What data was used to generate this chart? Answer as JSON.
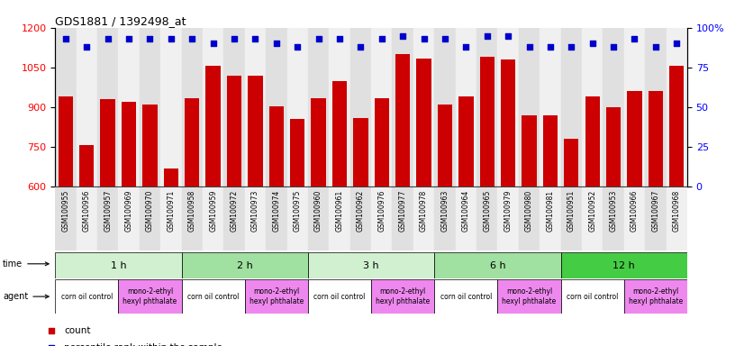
{
  "title": "GDS1881 / 1392498_at",
  "samples": [
    "GSM100955",
    "GSM100956",
    "GSM100957",
    "GSM100969",
    "GSM100970",
    "GSM100971",
    "GSM100958",
    "GSM100959",
    "GSM100972",
    "GSM100973",
    "GSM100974",
    "GSM100975",
    "GSM100960",
    "GSM100961",
    "GSM100962",
    "GSM100976",
    "GSM100977",
    "GSM100978",
    "GSM100963",
    "GSM100964",
    "GSM100965",
    "GSM100979",
    "GSM100980",
    "GSM100981",
    "GSM100951",
    "GSM100952",
    "GSM100953",
    "GSM100966",
    "GSM100967",
    "GSM100968"
  ],
  "counts": [
    940,
    757,
    930,
    920,
    910,
    670,
    935,
    1055,
    1020,
    1020,
    905,
    855,
    935,
    1000,
    860,
    935,
    1100,
    1085,
    910,
    940,
    1090,
    1080,
    870,
    870,
    780,
    940,
    900,
    960,
    960,
    1055
  ],
  "percentiles": [
    93,
    88,
    93,
    93,
    93,
    93,
    93,
    90,
    93,
    93,
    90,
    88,
    93,
    93,
    88,
    93,
    95,
    93,
    93,
    88,
    95,
    95,
    88,
    88,
    88,
    90,
    88,
    93,
    88,
    90
  ],
  "time_groups": [
    {
      "label": "1 h",
      "start": 0,
      "end": 6,
      "color": "#d0f0d0"
    },
    {
      "label": "2 h",
      "start": 6,
      "end": 12,
      "color": "#a0e0a0"
    },
    {
      "label": "3 h",
      "start": 12,
      "end": 18,
      "color": "#d0f0d0"
    },
    {
      "label": "6 h",
      "start": 18,
      "end": 24,
      "color": "#a0e0a0"
    },
    {
      "label": "12 h",
      "start": 24,
      "end": 30,
      "color": "#44cc44"
    }
  ],
  "agent_groups": [
    {
      "label": "corn oil control",
      "start": 0,
      "end": 3,
      "color": "#ffffff"
    },
    {
      "label": "mono-2-ethyl\nhexyl phthalate",
      "start": 3,
      "end": 6,
      "color": "#ee88ee"
    },
    {
      "label": "corn oil control",
      "start": 6,
      "end": 9,
      "color": "#ffffff"
    },
    {
      "label": "mono-2-ethyl\nhexyl phthalate",
      "start": 9,
      "end": 12,
      "color": "#ee88ee"
    },
    {
      "label": "corn oil control",
      "start": 12,
      "end": 15,
      "color": "#ffffff"
    },
    {
      "label": "mono-2-ethyl\nhexyl phthalate",
      "start": 15,
      "end": 18,
      "color": "#ee88ee"
    },
    {
      "label": "corn oil control",
      "start": 18,
      "end": 21,
      "color": "#ffffff"
    },
    {
      "label": "mono-2-ethyl\nhexyl phthalate",
      "start": 21,
      "end": 24,
      "color": "#ee88ee"
    },
    {
      "label": "corn oil control",
      "start": 24,
      "end": 27,
      "color": "#ffffff"
    },
    {
      "label": "mono-2-ethyl\nhexyl phthalate",
      "start": 27,
      "end": 30,
      "color": "#ee88ee"
    }
  ],
  "ylim_left": [
    600,
    1200
  ],
  "ylim_right": [
    0,
    100
  ],
  "yticks_left": [
    600,
    750,
    900,
    1050,
    1200
  ],
  "yticks_right": [
    0,
    25,
    50,
    75,
    100
  ],
  "bar_color": "#cc0000",
  "dot_color": "#0000cc",
  "bar_width": 0.7,
  "col_bg_even": "#e0e0e0",
  "col_bg_odd": "#f0f0f0"
}
